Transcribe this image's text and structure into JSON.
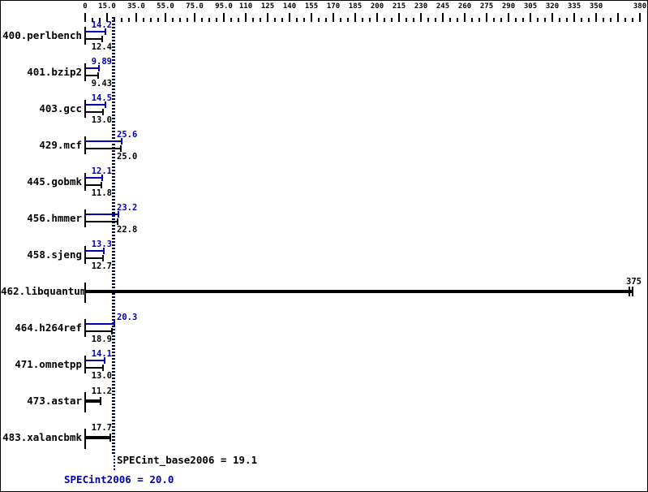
{
  "chart_data": {
    "type": "bar",
    "orientation": "horizontal",
    "axis": {
      "min": 0,
      "max": 380,
      "minor_tick_step": 5,
      "major_ticks": [
        0,
        15,
        35,
        55,
        75,
        95,
        110,
        125,
        140,
        155,
        170,
        185,
        200,
        215,
        230,
        245,
        260,
        275,
        290,
        305,
        320,
        335,
        350,
        365,
        380
      ],
      "tick_labels": [
        {
          "value": 0,
          "label": "0"
        },
        {
          "value": 15,
          "label": "15.0"
        },
        {
          "value": 35,
          "label": "35.0"
        },
        {
          "value": 55,
          "label": "55.0"
        },
        {
          "value": 75,
          "label": "75.0"
        },
        {
          "value": 95,
          "label": "95.0"
        },
        {
          "value": 110,
          "label": "110"
        },
        {
          "value": 125,
          "label": "125"
        },
        {
          "value": 140,
          "label": "140"
        },
        {
          "value": 155,
          "label": "155"
        },
        {
          "value": 170,
          "label": "170"
        },
        {
          "value": 185,
          "label": "185"
        },
        {
          "value": 200,
          "label": "200"
        },
        {
          "value": 215,
          "label": "215"
        },
        {
          "value": 230,
          "label": "230"
        },
        {
          "value": 245,
          "label": "245"
        },
        {
          "value": 260,
          "label": "260"
        },
        {
          "value": 275,
          "label": "275"
        },
        {
          "value": 290,
          "label": "290"
        },
        {
          "value": 305,
          "label": "305"
        },
        {
          "value": 320,
          "label": "320"
        },
        {
          "value": 335,
          "label": "335"
        },
        {
          "value": 350,
          "label": "350"
        },
        {
          "value": 380,
          "label": "380"
        }
      ]
    },
    "series": [
      {
        "name": "peak",
        "color": "#0000b0"
      },
      {
        "name": "base",
        "color": "#000000"
      }
    ],
    "benchmarks": [
      {
        "name": "400.perlbench",
        "peak": 14.2,
        "peak_label": "14.2",
        "base": 12.4,
        "base_label": "12.4"
      },
      {
        "name": "401.bzip2",
        "peak": 9.89,
        "peak_label": "9.89",
        "base": 9.43,
        "base_label": "9.43"
      },
      {
        "name": "403.gcc",
        "peak": 14.5,
        "peak_label": "14.5",
        "base": 13.0,
        "base_label": "13.0"
      },
      {
        "name": "429.mcf",
        "peak": 25.6,
        "peak_label": "25.6",
        "base": 25.0,
        "base_label": "25.0"
      },
      {
        "name": "445.gobmk",
        "peak": 12.1,
        "peak_label": "12.1",
        "base": 11.8,
        "base_label": "11.8"
      },
      {
        "name": "456.hmmer",
        "peak": 23.2,
        "peak_label": "23.2",
        "base": 22.8,
        "base_label": "22.8"
      },
      {
        "name": "458.sjeng",
        "peak": 13.3,
        "peak_label": "13.3",
        "base": 12.7,
        "base_label": "12.7"
      },
      {
        "name": "462.libquantum",
        "base": 375,
        "base_label": "375",
        "single": true,
        "double_cap": true
      },
      {
        "name": "464.h264ref",
        "peak": 20.3,
        "peak_label": "20.3",
        "base": 18.9,
        "base_label": "18.9"
      },
      {
        "name": "471.omnetpp",
        "peak": 14.1,
        "peak_label": "14.1",
        "base": 13.0,
        "base_label": "13.0"
      },
      {
        "name": "473.astar",
        "base": 11.2,
        "base_label": "11.2",
        "single": true
      },
      {
        "name": "483.xalancbmk",
        "base": 17.7,
        "base_label": "17.7",
        "single": true
      }
    ],
    "reference_lines": [
      {
        "name": "SPECint_base2006",
        "value": 19.1,
        "color": "#000000"
      },
      {
        "name": "SPECint2006",
        "value": 20.0,
        "color": "#0000b0"
      }
    ]
  },
  "footer": {
    "base_metric": "SPECint_base2006 = 19.1",
    "peak_metric": "SPECint2006 = 20.0"
  },
  "colors": {
    "peak": "#0000b0",
    "base": "#000000",
    "background": "#ffffff",
    "border": "#000000"
  }
}
